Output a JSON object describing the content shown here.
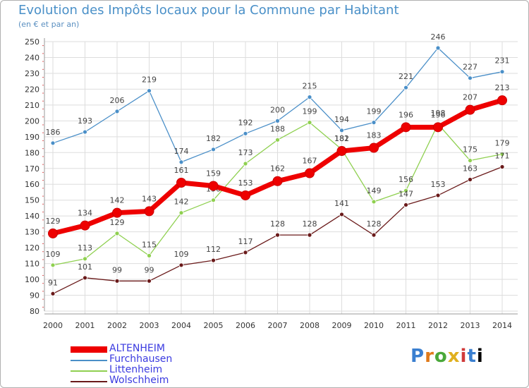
{
  "chart_data": {
    "type": "line",
    "title": "Evolution des Impôts locaux pour la Commune par Habitant",
    "subtitle": "(en € et par an)",
    "xlabel": "",
    "ylabel": "",
    "ylim": [
      80,
      250
    ],
    "yticks": [
      80,
      90,
      100,
      110,
      120,
      130,
      140,
      150,
      160,
      170,
      180,
      190,
      200,
      210,
      220,
      230,
      240,
      250
    ],
    "categories": [
      "2000",
      "2001",
      "2002",
      "2003",
      "2004",
      "2005",
      "2006",
      "2007",
      "2008",
      "2009",
      "2010",
      "2011",
      "2012",
      "2013",
      "2014"
    ],
    "grid": true,
    "legend_position": "bottom-left",
    "series": [
      {
        "name": "Furchhausen",
        "color": "#4a8fc8",
        "values": [
          186,
          193,
          206,
          219,
          174,
          182,
          192,
          200,
          215,
          194,
          199,
          221,
          246,
          227,
          231
        ]
      },
      {
        "name": "Littenheim",
        "color": "#8fd050",
        "values": [
          109,
          113,
          129,
          115,
          142,
          150,
          173,
          188,
          199,
          182,
          149,
          156,
          198,
          175,
          179
        ]
      },
      {
        "name": "Wolschheim",
        "color": "#6a1a1a",
        "values": [
          91,
          101,
          99,
          99,
          109,
          112,
          117,
          128,
          128,
          141,
          128,
          147,
          153,
          163,
          171
        ]
      },
      {
        "name": "ALTENHEIM",
        "color": "#ee0000",
        "values": [
          129,
          134,
          142,
          143,
          161,
          159,
          153,
          162,
          167,
          181,
          183,
          196,
          196,
          207,
          213
        ]
      }
    ],
    "legend": [
      "ALTENHEIM",
      "Furchhausen",
      "Littenheim",
      "Wolschheim"
    ]
  },
  "logo_text": "Proxiti"
}
